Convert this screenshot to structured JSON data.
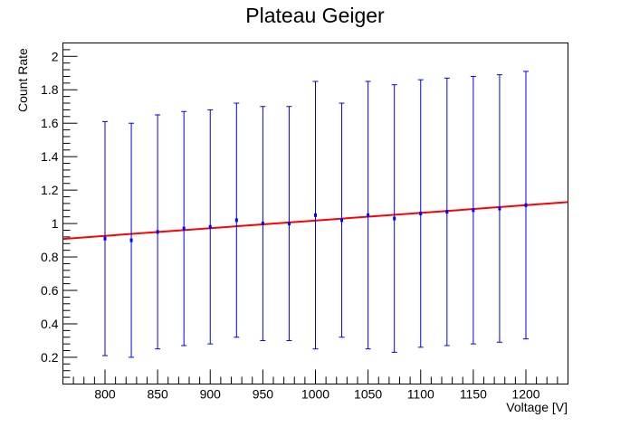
{
  "chart_data": {
    "type": "scatter",
    "title": "Plateau Geiger",
    "xlabel": "Voltage [V]",
    "ylabel": "Count Rate",
    "xlim": [
      760,
      1240
    ],
    "ylim": [
      0.04,
      2.08
    ],
    "xticks": [
      800,
      850,
      900,
      950,
      1000,
      1050,
      1100,
      1150,
      1200
    ],
    "yticks": [
      0.2,
      0.4,
      0.6,
      0.8,
      1,
      1.2,
      1.4,
      1.6,
      1.8,
      2
    ],
    "grid": false,
    "series": [
      {
        "kind": "points-with-errorbars",
        "color": "#0000ff",
        "x": [
          800,
          825,
          850,
          875,
          900,
          925,
          950,
          975,
          1000,
          1025,
          1050,
          1075,
          1100,
          1125,
          1150,
          1175,
          1200
        ],
        "y": [
          0.91,
          0.9,
          0.95,
          0.97,
          0.98,
          1.02,
          1.0,
          1.0,
          1.05,
          1.02,
          1.05,
          1.03,
          1.06,
          1.07,
          1.08,
          1.09,
          1.11
        ],
        "yerr_low": [
          0.21,
          0.2,
          0.25,
          0.27,
          0.28,
          0.32,
          0.3,
          0.3,
          0.25,
          0.32,
          0.25,
          0.23,
          0.26,
          0.27,
          0.28,
          0.29,
          0.31
        ],
        "yerr_high": [
          1.61,
          1.6,
          1.65,
          1.67,
          1.68,
          1.72,
          1.7,
          1.7,
          1.85,
          1.72,
          1.85,
          1.83,
          1.86,
          1.87,
          1.88,
          1.89,
          1.91
        ]
      },
      {
        "kind": "fit-line",
        "color": "#ff0000",
        "x": [
          760,
          1240
        ],
        "y": [
          0.908,
          1.128
        ]
      }
    ]
  }
}
